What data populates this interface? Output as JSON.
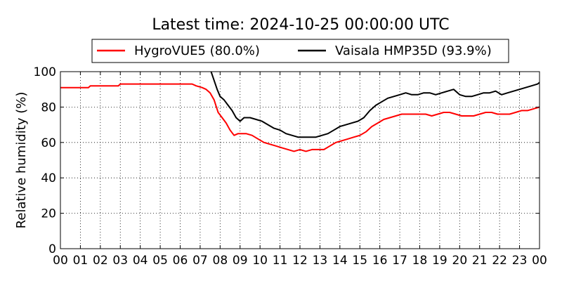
{
  "chart_data": {
    "type": "line",
    "title": "Latest time: 2024-10-25 00:00:00 UTC",
    "ylabel": "Relative humidity (%)",
    "xlabel": "",
    "xlim": [
      0,
      24
    ],
    "ylim": [
      0,
      100
    ],
    "x_ticks": [
      0,
      1,
      2,
      3,
      4,
      5,
      6,
      7,
      8,
      9,
      10,
      11,
      12,
      13,
      14,
      15,
      16,
      17,
      18,
      19,
      20,
      21,
      22,
      23,
      24
    ],
    "x_tick_labels": [
      "00",
      "01",
      "02",
      "03",
      "04",
      "05",
      "06",
      "07",
      "08",
      "09",
      "10",
      "11",
      "12",
      "13",
      "14",
      "15",
      "16",
      "17",
      "18",
      "19",
      "20",
      "21",
      "22",
      "23",
      "00"
    ],
    "y_ticks": [
      0,
      20,
      40,
      60,
      80,
      100
    ],
    "y_tick_labels": [
      "0",
      "20",
      "40",
      "60",
      "80",
      "100"
    ],
    "grid": true,
    "legend_position": "top",
    "series": [
      {
        "name": "HygroVUE5 (80.0%)",
        "color": "#ff0000",
        "x": [
          0,
          1.4,
          1.5,
          2.9,
          3.0,
          3.8,
          3.9,
          6.6,
          6.8,
          7.1,
          7.3,
          7.5,
          7.7,
          7.9,
          8.1,
          8.3,
          8.5,
          8.7,
          8.9,
          9.1,
          9.3,
          9.6,
          9.9,
          10.2,
          10.5,
          10.8,
          11.1,
          11.4,
          11.7,
          12.0,
          12.3,
          12.6,
          12.9,
          13.2,
          13.5,
          13.8,
          14.1,
          14.4,
          14.7,
          15.0,
          15.3,
          15.6,
          15.9,
          16.2,
          16.5,
          16.8,
          17.1,
          17.4,
          17.7,
          18.0,
          18.3,
          18.6,
          18.9,
          19.2,
          19.5,
          19.8,
          20.1,
          20.4,
          20.7,
          21.0,
          21.3,
          21.6,
          21.9,
          22.2,
          22.5,
          22.8,
          23.1,
          23.4,
          23.7,
          24.0
        ],
        "y": [
          91,
          91,
          92,
          92,
          93,
          93,
          93,
          93,
          92,
          91,
          90,
          88,
          84,
          77,
          74,
          71,
          67,
          64,
          65,
          65,
          65,
          64,
          62,
          60,
          59,
          58,
          57,
          56,
          55,
          56,
          55,
          56,
          56,
          56,
          58,
          60,
          61,
          62,
          63,
          64,
          66,
          69,
          71,
          73,
          74,
          75,
          76,
          76,
          76,
          76,
          76,
          75,
          76,
          77,
          77,
          76,
          75,
          75,
          75,
          76,
          77,
          77,
          76,
          76,
          76,
          77,
          78,
          78,
          79,
          80
        ]
      },
      {
        "name": "Vaisala HMP35D (93.9%)",
        "color": "#000000",
        "x": [
          7.55,
          7.7,
          7.85,
          8.0,
          8.2,
          8.4,
          8.6,
          8.8,
          9.0,
          9.2,
          9.5,
          9.8,
          10.1,
          10.4,
          10.7,
          11.0,
          11.3,
          11.6,
          11.9,
          12.2,
          12.5,
          12.8,
          13.1,
          13.4,
          13.7,
          14.0,
          14.3,
          14.6,
          14.9,
          15.2,
          15.5,
          15.8,
          16.1,
          16.4,
          16.7,
          17.0,
          17.3,
          17.6,
          17.9,
          18.2,
          18.5,
          18.8,
          19.1,
          19.4,
          19.7,
          20.0,
          20.3,
          20.6,
          20.9,
          21.2,
          21.5,
          21.8,
          22.1,
          22.4,
          22.7,
          23.0,
          23.3,
          23.6,
          23.9,
          24.0
        ],
        "y": [
          100,
          95,
          90,
          86,
          84,
          81,
          78,
          74,
          72,
          74,
          74,
          73,
          72,
          70,
          68,
          67,
          65,
          64,
          63,
          63,
          63,
          63,
          64,
          65,
          67,
          69,
          70,
          71,
          72,
          74,
          78,
          81,
          83,
          85,
          86,
          87,
          88,
          87,
          87,
          88,
          88,
          87,
          88,
          89,
          90,
          87,
          86,
          86,
          87,
          88,
          88,
          89,
          87,
          88,
          89,
          90,
          91,
          92,
          93,
          93.9
        ]
      }
    ]
  }
}
